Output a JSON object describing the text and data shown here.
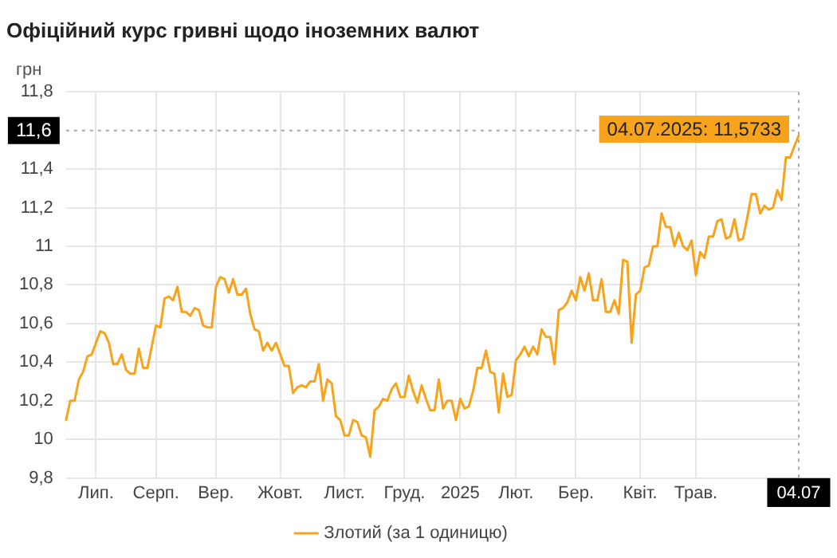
{
  "chart_data": {
    "type": "line",
    "title": "Офіційний курс гривні щодо іноземних валют",
    "ylabel": "грн",
    "categories": [
      null,
      null,
      null,
      null,
      null,
      null,
      null,
      "Лип.",
      null,
      null,
      null,
      null,
      null,
      null,
      null,
      null,
      null,
      null,
      null,
      null,
      null,
      "Серп.",
      null,
      null,
      null,
      null,
      null,
      null,
      null,
      null,
      null,
      null,
      null,
      null,
      null,
      "Вер.",
      null,
      null,
      null,
      null,
      null,
      null,
      null,
      null,
      null,
      null,
      null,
      null,
      null,
      null,
      "Жовт.",
      null,
      null,
      null,
      null,
      null,
      null,
      null,
      null,
      null,
      null,
      null,
      null,
      null,
      null,
      "Лист.",
      null,
      null,
      null,
      null,
      null,
      null,
      null,
      null,
      null,
      null,
      null,
      null,
      null,
      "Груд.",
      null,
      null,
      null,
      null,
      null,
      null,
      null,
      null,
      null,
      null,
      null,
      null,
      "2025",
      null,
      null,
      null,
      null,
      null,
      null,
      null,
      null,
      null,
      null,
      null,
      null,
      "Лют.",
      null,
      null,
      null,
      null,
      null,
      null,
      null,
      null,
      null,
      null,
      null,
      null,
      null,
      "Бер.",
      null,
      null,
      null,
      null,
      null,
      null,
      null,
      null,
      null,
      null,
      null,
      null,
      null,
      null,
      "Квіт.",
      null,
      null,
      null,
      null,
      null,
      null,
      null,
      null,
      null,
      null,
      null,
      null,
      "Трав.",
      null,
      null,
      null,
      null,
      null,
      null,
      null,
      null,
      null,
      null,
      null,
      null,
      null,
      null,
      null,
      null,
      null,
      null,
      null,
      null,
      null,
      null,
      null,
      "04.07"
    ],
    "series": [
      {
        "name": "Злотий (за 1 одиницю)",
        "color": "#f7a31c",
        "values": [
          10.1,
          10.2,
          10.2,
          10.31,
          10.35,
          10.43,
          10.44,
          10.5,
          10.56,
          10.55,
          10.5,
          10.39,
          10.39,
          10.44,
          10.36,
          10.34,
          10.34,
          10.47,
          10.37,
          10.37,
          10.48,
          10.59,
          10.58,
          10.73,
          10.74,
          10.72,
          10.79,
          10.66,
          10.66,
          10.64,
          10.68,
          10.67,
          10.59,
          10.58,
          10.58,
          10.79,
          10.84,
          10.83,
          10.76,
          10.83,
          10.75,
          10.75,
          10.78,
          10.65,
          10.57,
          10.56,
          10.46,
          10.5,
          10.46,
          10.5,
          10.44,
          10.38,
          10.38,
          10.24,
          10.27,
          10.28,
          10.27,
          10.3,
          10.3,
          10.39,
          10.2,
          10.31,
          10.29,
          10.12,
          10.1,
          10.02,
          10.02,
          10.1,
          10.09,
          10.02,
          10.01,
          9.91,
          10.15,
          10.17,
          10.21,
          10.2,
          10.26,
          10.29,
          10.22,
          10.22,
          10.33,
          10.25,
          10.19,
          10.28,
          10.21,
          10.15,
          10.15,
          10.31,
          10.16,
          10.2,
          10.2,
          10.1,
          10.21,
          10.16,
          10.17,
          10.25,
          10.37,
          10.37,
          10.46,
          10.35,
          10.34,
          10.14,
          10.34,
          10.22,
          10.23,
          10.41,
          10.44,
          10.48,
          10.43,
          10.48,
          10.44,
          10.57,
          10.53,
          10.53,
          10.39,
          10.67,
          10.68,
          10.71,
          10.77,
          10.72,
          10.84,
          10.77,
          10.86,
          10.72,
          10.72,
          10.83,
          10.66,
          10.66,
          10.72,
          10.65,
          10.93,
          10.92,
          10.5,
          10.75,
          10.77,
          10.89,
          10.9,
          11.0,
          11.0,
          11.17,
          11.1,
          11.1,
          11.0,
          11.07,
          11.0,
          10.98,
          11.03,
          10.85,
          10.97,
          10.94,
          11.05,
          11.05,
          11.13,
          11.14,
          11.04,
          11.05,
          11.14,
          11.03,
          11.04,
          11.15,
          11.27,
          11.27,
          11.17,
          11.21,
          11.19,
          11.2,
          11.29,
          11.24,
          11.46,
          11.46,
          11.52,
          11.5733
        ]
      }
    ],
    "ylim": [
      9.8,
      11.8
    ],
    "yticks": [
      {
        "value": 9.8,
        "label": "9,8"
      },
      10,
      {
        "value": 10.2,
        "label": "10,2"
      },
      {
        "value": 10.4,
        "label": "10,4"
      },
      {
        "value": 10.6,
        "label": "10,6"
      },
      {
        "value": 10.8,
        "label": "10,8"
      },
      11,
      {
        "value": 11.2,
        "label": "11,2"
      },
      {
        "value": 11.4,
        "label": "11,4"
      },
      {
        "value": 11.8,
        "label": "11,8"
      }
    ],
    "ref_lines": [
      {
        "axis": "y",
        "value": 11.6,
        "label": "11,6",
        "line_style": "dotted"
      },
      {
        "axis": "x",
        "value": "04.07",
        "line_style": "dotted"
      }
    ],
    "annotations": [
      {
        "text": "04.07.2025: 11,5733",
        "x": "04.07",
        "y": 11.5733
      }
    ],
    "grid": true,
    "legend": "bottom",
    "marker": "none",
    "line_style": "solid"
  }
}
